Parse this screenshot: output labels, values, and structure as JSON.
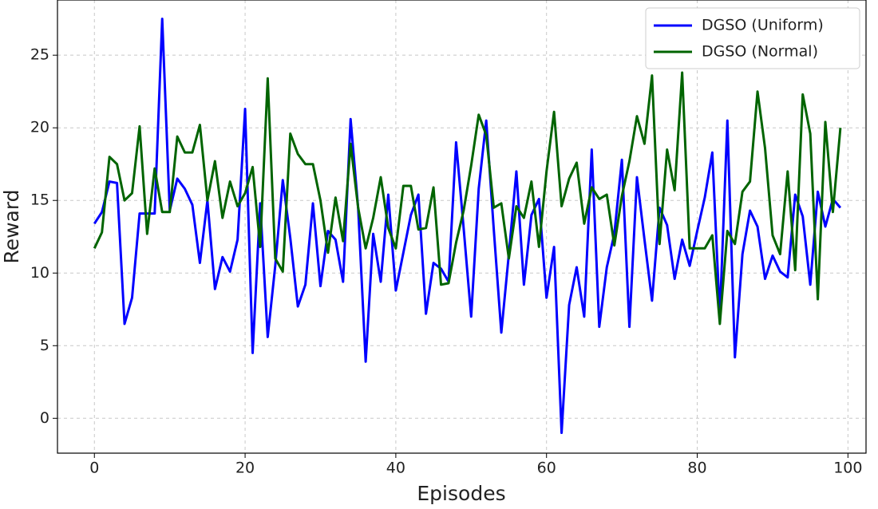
{
  "chart_data": {
    "type": "line",
    "xlabel": "Episodes",
    "ylabel": "Reward",
    "x": [
      0,
      1,
      2,
      3,
      4,
      5,
      6,
      7,
      8,
      9,
      10,
      11,
      12,
      13,
      14,
      15,
      16,
      17,
      18,
      19,
      20,
      21,
      22,
      23,
      24,
      25,
      26,
      27,
      28,
      29,
      30,
      31,
      32,
      33,
      34,
      35,
      36,
      37,
      38,
      39,
      40,
      41,
      42,
      43,
      44,
      45,
      46,
      47,
      48,
      49,
      50,
      51,
      52,
      53,
      54,
      55,
      56,
      57,
      58,
      59,
      60,
      61,
      62,
      63,
      64,
      65,
      66,
      67,
      68,
      69,
      70,
      71,
      72,
      73,
      74,
      75,
      76,
      77,
      78,
      79,
      80,
      81,
      82,
      83,
      84,
      85,
      86,
      87,
      88,
      89,
      90,
      91,
      92,
      93,
      94,
      95,
      96,
      97,
      98,
      99
    ],
    "series": [
      {
        "name": "DGSO (Uniform)",
        "color": "#0000ff",
        "values": [
          13.4,
          14.2,
          16.3,
          16.2,
          6.5,
          8.3,
          14.1,
          14.1,
          14.1,
          27.5,
          14.3,
          16.5,
          15.8,
          14.7,
          10.7,
          15.0,
          8.9,
          11.1,
          10.1,
          12.3,
          21.3,
          4.5,
          14.8,
          5.6,
          10.5,
          16.4,
          12.4,
          7.7,
          9.2,
          14.8,
          9.1,
          12.9,
          12.3,
          9.4,
          20.6,
          14.5,
          3.9,
          12.7,
          9.4,
          15.4,
          8.8,
          11.4,
          14.0,
          15.4,
          7.2,
          10.7,
          10.3,
          9.4,
          19.0,
          13.1,
          7.0,
          15.8,
          20.5,
          13.0,
          5.9,
          11.3,
          17.0,
          9.2,
          14.0,
          15.1,
          8.3,
          11.8,
          -1.0,
          7.8,
          10.4,
          7.0,
          18.5,
          6.3,
          10.4,
          12.7,
          17.8,
          6.3,
          16.6,
          12.3,
          8.1,
          14.5,
          13.3,
          9.6,
          12.3,
          10.5,
          12.9,
          15.2,
          18.3,
          7.0,
          20.5,
          4.2,
          11.3,
          14.3,
          13.2,
          9.6,
          11.2,
          10.1,
          9.7,
          15.4,
          13.9,
          9.2,
          15.6,
          13.2,
          15.1,
          14.5
        ]
      },
      {
        "name": "DGSO (Normal)",
        "color": "#006400",
        "values": [
          11.7,
          12.8,
          18.0,
          17.5,
          15.0,
          15.5,
          20.1,
          12.7,
          17.2,
          14.2,
          14.2,
          19.4,
          18.3,
          18.3,
          20.2,
          15.0,
          17.7,
          13.8,
          16.3,
          14.6,
          15.5,
          17.3,
          11.8,
          23.4,
          11.0,
          10.1,
          19.6,
          18.2,
          17.5,
          17.5,
          15.0,
          11.4,
          15.2,
          12.2,
          18.9,
          14.5,
          11.7,
          13.8,
          16.6,
          13.1,
          11.7,
          16.0,
          16.0,
          13.0,
          13.1,
          15.9,
          9.2,
          9.3,
          12.1,
          14.3,
          17.4,
          20.9,
          19.5,
          14.5,
          14.8,
          11.0,
          14.6,
          13.8,
          16.3,
          11.8,
          17.0,
          21.1,
          14.6,
          16.5,
          17.6,
          13.4,
          15.9,
          15.1,
          15.4,
          11.9,
          15.3,
          17.7,
          20.8,
          18.9,
          23.6,
          12.0,
          18.5,
          15.7,
          23.8,
          11.7,
          11.7,
          11.7,
          12.6,
          6.5,
          12.9,
          12.0,
          15.6,
          16.3,
          22.5,
          18.6,
          12.6,
          11.3,
          17.0,
          10.2,
          22.3,
          19.6,
          8.2,
          20.4,
          14.2,
          20.0
        ]
      }
    ],
    "xlim": [
      -4.9,
      102.4
    ],
    "ylim": [
      -2.4,
      28.8
    ],
    "xticks": [
      0,
      20,
      40,
      60,
      80,
      100
    ],
    "yticks": [
      0,
      5,
      10,
      15,
      20,
      25
    ],
    "grid": true,
    "legend": "upper right"
  }
}
